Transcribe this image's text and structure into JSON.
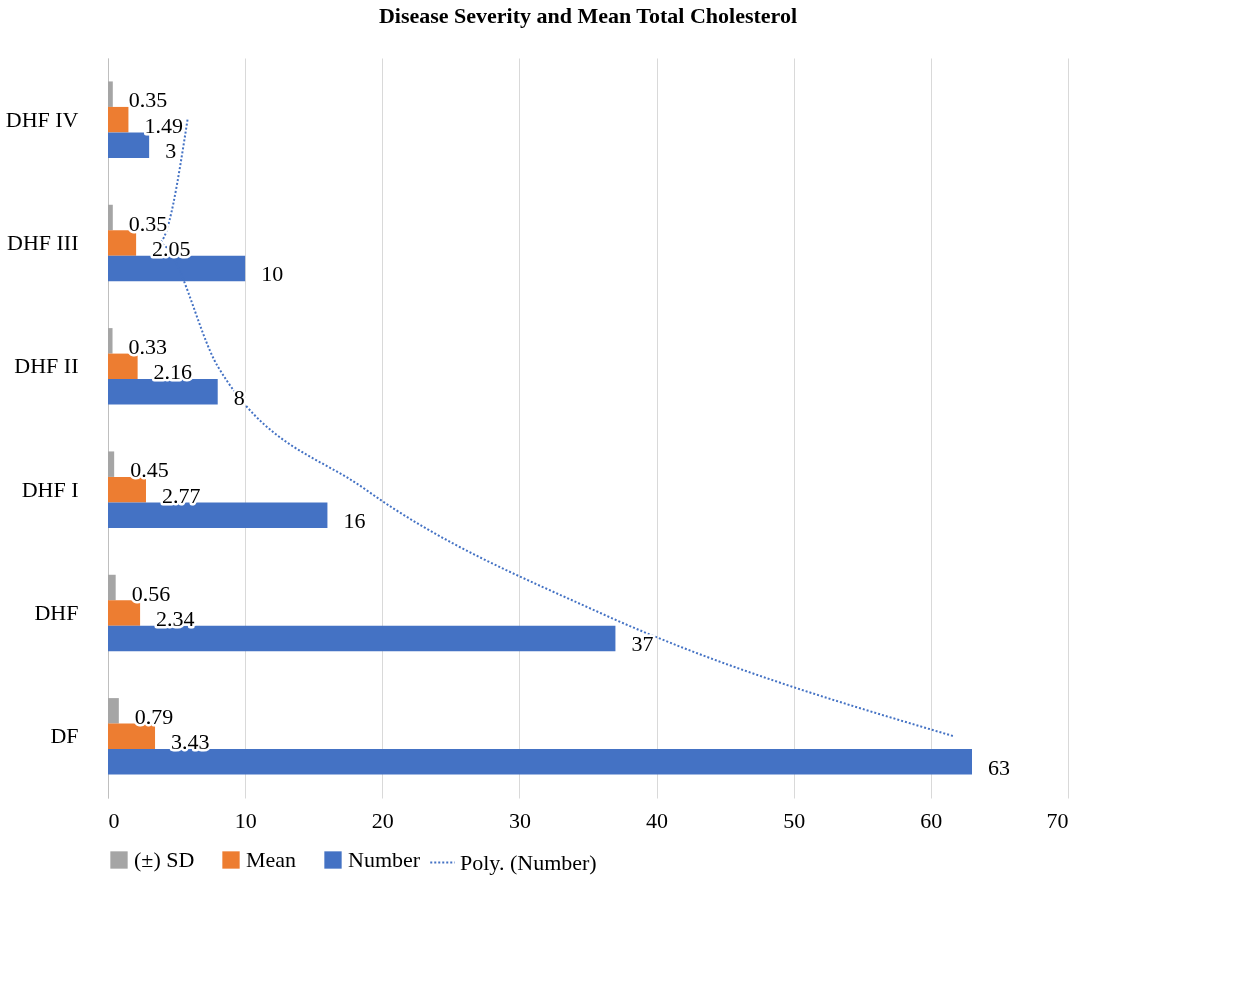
{
  "chart_data": {
    "type": "bar",
    "orientation": "horizontal",
    "title": "Disease Severity and Mean Total Cholesterol",
    "categories": [
      "DHF IV",
      "DHF III",
      "DHF II",
      "DHF I",
      "DHF",
      "DF"
    ],
    "series": [
      {
        "name": "(±) SD",
        "color": "#a5a5a5",
        "values": [
          0.35,
          0.35,
          0.33,
          0.45,
          0.56,
          0.79
        ],
        "value_labels": [
          "0.35",
          "0.35",
          "0.33",
          "0.45",
          "0.56",
          "0.79"
        ]
      },
      {
        "name": "Mean",
        "color": "#ed7d31",
        "values": [
          1.49,
          2.05,
          2.16,
          2.77,
          2.34,
          3.43
        ],
        "value_labels": [
          "1.49",
          "2.05",
          "2.16",
          "2.77",
          "2.34",
          "3.43"
        ]
      },
      {
        "name": "Number",
        "color": "#4472c4",
        "values": [
          3,
          10,
          8,
          16,
          37,
          63
        ],
        "value_labels": [
          "3",
          "10",
          "8",
          "16",
          "37",
          "63"
        ]
      },
      {
        "name": "Poly. (Number)",
        "type": "line",
        "line_style": "dotted",
        "color": "#4472c4",
        "values": [
          5.8,
          3.7,
          8.0,
          18.8,
          35.9,
          61.7
        ]
      }
    ],
    "xlim": [
      0,
      70
    ],
    "xticks": [
      0,
      10,
      20,
      30,
      40,
      50,
      60,
      70
    ],
    "grid": "x",
    "legend": "bottom"
  }
}
